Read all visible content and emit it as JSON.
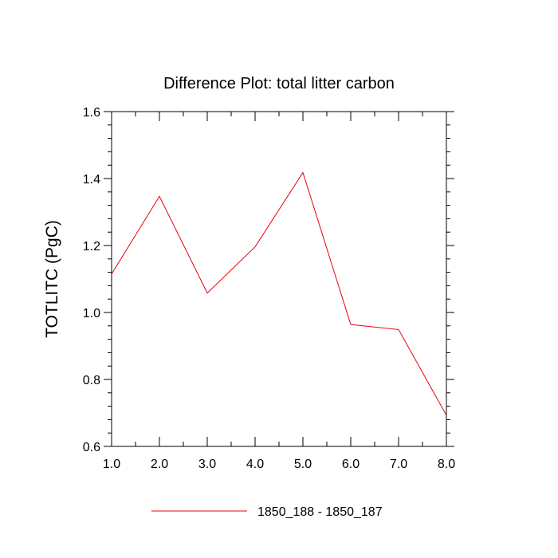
{
  "chart_data": {
    "type": "line",
    "title": "Difference Plot: total litter carbon",
    "xlabel": "",
    "ylabel": "TOTLITC  (PgC)",
    "xlim": [
      1.0,
      8.0
    ],
    "ylim": [
      0.6,
      1.6
    ],
    "x_ticks": [
      1.0,
      2.0,
      3.0,
      4.0,
      5.0,
      6.0,
      7.0,
      8.0
    ],
    "x_tick_labels": [
      "1.0",
      "2.0",
      "3.0",
      "4.0",
      "5.0",
      "6.0",
      "7.0",
      "8.0"
    ],
    "y_ticks": [
      0.6,
      0.8,
      1.0,
      1.2,
      1.4,
      1.6
    ],
    "y_tick_labels": [
      "0.6",
      "0.8",
      "1.0",
      "1.2",
      "1.4",
      "1.6"
    ],
    "grid": false,
    "legend_position": "bottom-center",
    "series": [
      {
        "name": "1850_188 - 1850_187",
        "color": "#e8000b",
        "x": [
          1.0,
          2.0,
          3.0,
          4.0,
          5.0,
          6.0,
          7.0,
          8.0
        ],
        "values": [
          1.115,
          1.347,
          1.058,
          1.196,
          1.418,
          0.964,
          0.949,
          0.693
        ]
      }
    ]
  }
}
